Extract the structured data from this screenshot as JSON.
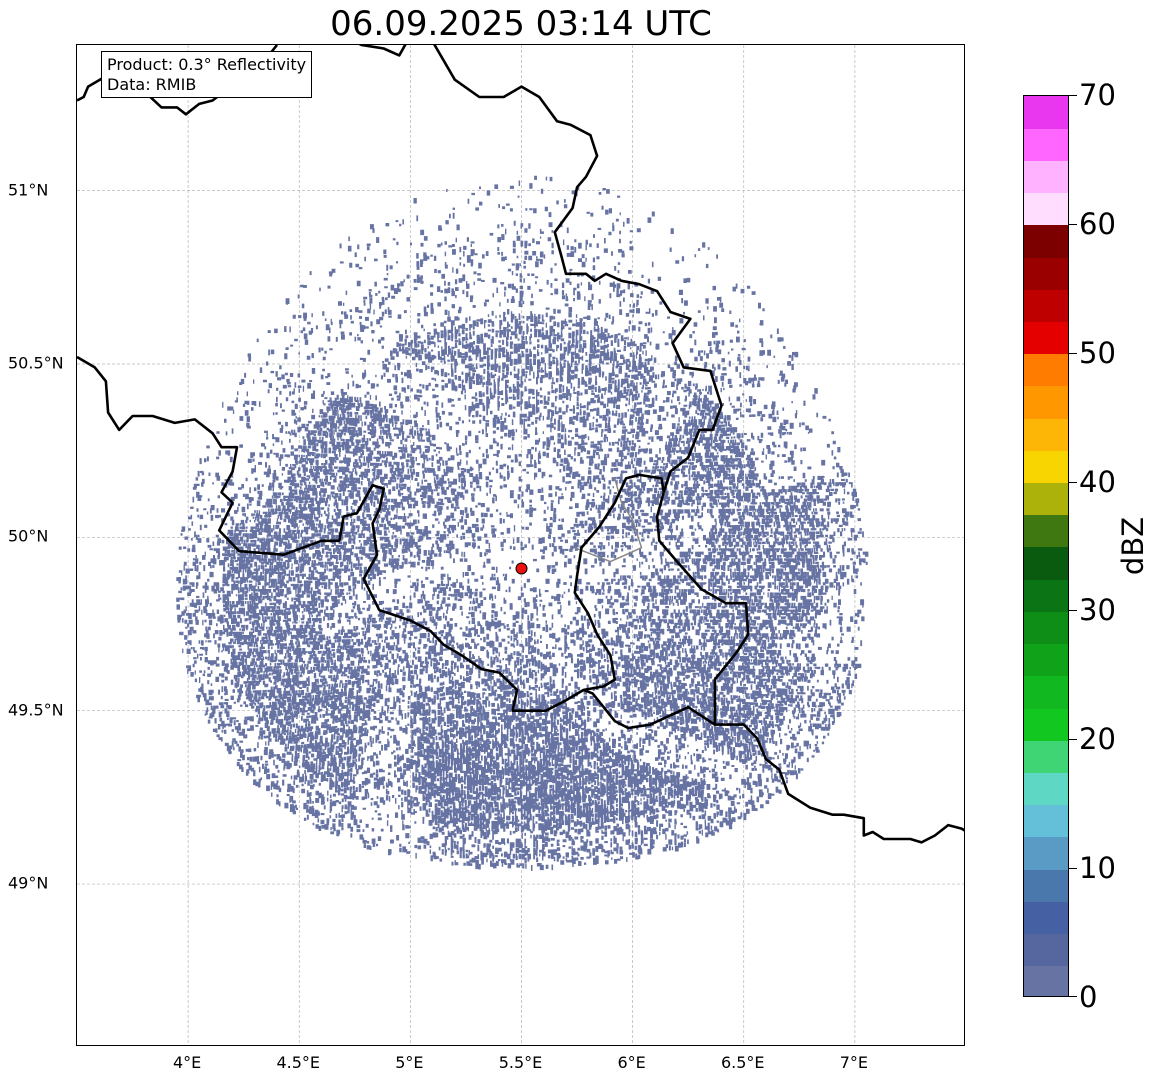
{
  "title": "06.09.2025 03:14 UTC",
  "info": {
    "product": "Product: 0.3° Reflectivity",
    "source": "Data: RMIB"
  },
  "map": {
    "lon_range": [
      3.5,
      7.5
    ],
    "lat_range": [
      48.53,
      51.42
    ],
    "x_ticks": [
      {
        "value": 4.0,
        "label": "4°E"
      },
      {
        "value": 4.5,
        "label": "4.5°E"
      },
      {
        "value": 5.0,
        "label": "5°E"
      },
      {
        "value": 5.5,
        "label": "5.5°E"
      },
      {
        "value": 6.0,
        "label": "6°E"
      },
      {
        "value": 6.5,
        "label": "6.5°E"
      },
      {
        "value": 7.0,
        "label": "7°E"
      }
    ],
    "y_ticks": [
      {
        "value": 49.0,
        "label": "49°N"
      },
      {
        "value": 49.5,
        "label": "49.5°N"
      },
      {
        "value": 50.0,
        "label": "50°N"
      },
      {
        "value": 50.5,
        "label": "50.5°N"
      },
      {
        "value": 51.0,
        "label": "51°N"
      }
    ],
    "grid": true,
    "radar_site": {
      "lon": 5.5,
      "lat": 49.91,
      "color": "#ee1111"
    },
    "echo_color": "#6673a3",
    "borders": [
      [
        [
          3.5,
          51.26
        ],
        [
          3.53,
          51.27
        ],
        [
          3.55,
          51.3
        ],
        [
          3.63,
          51.33
        ],
        [
          3.73,
          51.3
        ],
        [
          3.78,
          51.3
        ],
        [
          3.88,
          51.24
        ],
        [
          3.95,
          51.24
        ],
        [
          3.99,
          51.22
        ],
        [
          4.05,
          51.25
        ],
        [
          4.11,
          51.26
        ],
        [
          4.17,
          51.29
        ],
        [
          4.22,
          51.33
        ],
        [
          4.27,
          51.37
        ],
        [
          4.35,
          51.38
        ],
        [
          4.4,
          51.42
        ]
      ],
      [
        [
          4.75,
          51.43
        ],
        [
          4.78,
          51.42
        ],
        [
          4.88,
          51.41
        ],
        [
          4.95,
          51.39
        ],
        [
          5.02,
          51.47
        ],
        [
          5.1,
          51.43
        ],
        [
          5.2,
          51.32
        ],
        [
          5.31,
          51.27
        ],
        [
          5.42,
          51.27
        ],
        [
          5.5,
          51.3
        ],
        [
          5.58,
          51.27
        ],
        [
          5.66,
          51.2
        ],
        [
          5.72,
          51.19
        ],
        [
          5.81,
          51.16
        ],
        [
          5.84,
          51.1
        ],
        [
          5.79,
          51.04
        ],
        [
          5.75,
          51.01
        ],
        [
          5.73,
          50.95
        ],
        [
          5.65,
          50.88
        ],
        [
          5.68,
          50.81
        ],
        [
          5.7,
          50.76
        ],
        [
          5.79,
          50.76
        ],
        [
          5.83,
          50.74
        ],
        [
          5.88,
          50.76
        ],
        [
          5.95,
          50.74
        ],
        [
          6.03,
          50.73
        ],
        [
          6.11,
          50.71
        ],
        [
          6.17,
          50.65
        ],
        [
          6.26,
          50.63
        ],
        [
          6.18,
          50.56
        ],
        [
          6.23,
          50.49
        ],
        [
          6.35,
          50.48
        ],
        [
          6.4,
          50.38
        ],
        [
          6.36,
          50.31
        ],
        [
          6.3,
          50.31
        ],
        [
          6.25,
          50.23
        ],
        [
          6.17,
          50.19
        ],
        [
          6.14,
          50.13
        ]
      ],
      [
        [
          3.5,
          50.52
        ],
        [
          3.58,
          50.49
        ],
        [
          3.63,
          50.45
        ],
        [
          3.64,
          50.36
        ],
        [
          3.69,
          50.31
        ],
        [
          3.75,
          50.35
        ],
        [
          3.84,
          50.35
        ],
        [
          3.94,
          50.33
        ],
        [
          4.03,
          50.34
        ],
        [
          4.11,
          50.3
        ],
        [
          4.15,
          50.26
        ],
        [
          4.22,
          50.26
        ],
        [
          4.2,
          50.19
        ],
        [
          4.15,
          50.13
        ],
        [
          4.2,
          50.1
        ],
        [
          4.14,
          50.02
        ],
        [
          4.23,
          49.96
        ],
        [
          4.43,
          49.95
        ],
        [
          4.6,
          49.99
        ],
        [
          4.68,
          49.99
        ],
        [
          4.7,
          50.06
        ],
        [
          4.76,
          50.07
        ],
        [
          4.83,
          50.15
        ],
        [
          4.88,
          50.14
        ],
        [
          4.86,
          50.08
        ],
        [
          4.83,
          50.04
        ],
        [
          4.85,
          49.95
        ],
        [
          4.79,
          49.88
        ],
        [
          4.86,
          49.79
        ],
        [
          5.0,
          49.76
        ],
        [
          5.09,
          49.73
        ],
        [
          5.15,
          49.69
        ],
        [
          5.23,
          49.66
        ],
        [
          5.32,
          49.62
        ],
        [
          5.4,
          49.61
        ],
        [
          5.48,
          49.56
        ],
        [
          5.46,
          49.5
        ],
        [
          5.61,
          49.5
        ],
        [
          5.7,
          49.53
        ],
        [
          5.78,
          49.56
        ],
        [
          5.87,
          49.57
        ],
        [
          5.92,
          49.59
        ],
        [
          5.9,
          49.66
        ],
        [
          5.84,
          49.72
        ],
        [
          5.8,
          49.78
        ],
        [
          5.74,
          49.84
        ],
        [
          5.75,
          49.89
        ],
        [
          5.77,
          49.97
        ],
        [
          5.85,
          50.03
        ],
        [
          5.92,
          50.1
        ],
        [
          5.97,
          50.17
        ],
        [
          6.03,
          50.18
        ],
        [
          6.13,
          50.17
        ],
        [
          6.14,
          50.13
        ]
      ],
      [
        [
          6.14,
          50.13
        ],
        [
          6.11,
          50.06
        ],
        [
          6.12,
          49.99
        ],
        [
          6.2,
          49.93
        ],
        [
          6.31,
          49.85
        ],
        [
          6.42,
          49.81
        ],
        [
          6.51,
          49.81
        ],
        [
          6.52,
          49.72
        ],
        [
          6.47,
          49.67
        ],
        [
          6.37,
          49.59
        ],
        [
          6.37,
          49.46
        ],
        [
          6.25,
          49.51
        ],
        [
          6.08,
          49.46
        ],
        [
          5.98,
          49.45
        ],
        [
          5.92,
          49.47
        ],
        [
          5.87,
          49.51
        ],
        [
          5.82,
          49.55
        ],
        [
          5.78,
          49.56
        ]
      ],
      [
        [
          6.37,
          49.46
        ],
        [
          6.5,
          49.46
        ],
        [
          6.56,
          49.42
        ],
        [
          6.6,
          49.36
        ],
        [
          6.66,
          49.33
        ],
        [
          6.7,
          49.26
        ],
        [
          6.8,
          49.22
        ],
        [
          6.85,
          49.21
        ],
        [
          6.9,
          49.2
        ],
        [
          6.95,
          49.2
        ],
        [
          7.04,
          49.19
        ],
        [
          7.04,
          49.14
        ],
        [
          7.08,
          49.15
        ],
        [
          7.13,
          49.13
        ],
        [
          7.18,
          49.13
        ],
        [
          7.25,
          49.13
        ],
        [
          7.3,
          49.12
        ],
        [
          7.36,
          49.14
        ],
        [
          7.42,
          49.17
        ],
        [
          7.48,
          49.16
        ],
        [
          7.53,
          49.14
        ]
      ]
    ],
    "secondary_borders": [
      [
        [
          5.74,
          49.97
        ],
        [
          5.82,
          49.95
        ],
        [
          5.9,
          49.93
        ],
        [
          5.97,
          49.95
        ],
        [
          6.04,
          49.97
        ],
        [
          6.0,
          50.05
        ],
        [
          5.95,
          50.1
        ],
        [
          5.92,
          50.17
        ]
      ]
    ]
  },
  "colorbar": {
    "label": "dBZ",
    "min": 0,
    "max": 70,
    "step": 2.5,
    "ticks": [
      {
        "value": 0,
        "label": "0"
      },
      {
        "value": 10,
        "label": "10"
      },
      {
        "value": 20,
        "label": "20"
      },
      {
        "value": 30,
        "label": "30"
      },
      {
        "value": 40,
        "label": "40"
      },
      {
        "value": 50,
        "label": "50"
      },
      {
        "value": 60,
        "label": "60"
      },
      {
        "value": 70,
        "label": "70"
      }
    ],
    "colors": [
      "#6673a3",
      "#56679f",
      "#4560a3",
      "#4a78ad",
      "#5a9bc6",
      "#64bfd8",
      "#5fd7c5",
      "#3fd474",
      "#12c71f",
      "#12b820",
      "#10a31a",
      "#0e8e17",
      "#0b7414",
      "#0a5b10",
      "#3f7811",
      "#adb20a",
      "#f8d500",
      "#fdb506",
      "#fe9700",
      "#ff7c00",
      "#e50000",
      "#bf0000",
      "#9b0000",
      "#7d0000",
      "#ffddff",
      "#ffb2ff",
      "#ff66ff",
      "#e936ef"
    ]
  }
}
